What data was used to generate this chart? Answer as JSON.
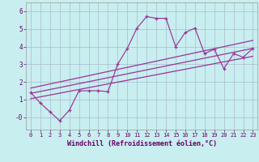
{
  "xlabel": "Windchill (Refroidissement éolien,°C)",
  "bg_color": "#c8eef0",
  "line_color": "#993399",
  "grid_color": "#aabbcc",
  "x_data": [
    0,
    1,
    2,
    3,
    4,
    5,
    6,
    7,
    8,
    9,
    10,
    11,
    12,
    13,
    14,
    15,
    16,
    17,
    18,
    19,
    20,
    21,
    22,
    23
  ],
  "y_scatter": [
    1.4,
    0.8,
    0.3,
    -0.2,
    0.4,
    1.5,
    1.5,
    1.5,
    1.45,
    3.0,
    3.9,
    5.05,
    5.7,
    5.6,
    5.6,
    4.0,
    4.8,
    5.05,
    3.6,
    3.85,
    2.75,
    3.6,
    3.4,
    3.9
  ],
  "reg_line1_x": [
    0,
    23
  ],
  "reg_line1_y": [
    1.35,
    3.9
  ],
  "reg_line2_x": [
    0,
    23
  ],
  "reg_line2_y": [
    1.05,
    3.45
  ],
  "reg_line3_x": [
    0,
    23
  ],
  "reg_line3_y": [
    1.65,
    4.35
  ],
  "xlim": [
    -0.5,
    23.5
  ],
  "ylim": [
    -0.7,
    6.5
  ],
  "ytick_vals": [
    0,
    1,
    2,
    3,
    4,
    5,
    6
  ],
  "ytick_labels": [
    "-0",
    "1",
    "2",
    "3",
    "4",
    "5",
    "6"
  ],
  "xtick_vals": [
    0,
    1,
    2,
    3,
    4,
    5,
    6,
    7,
    8,
    9,
    10,
    11,
    12,
    13,
    14,
    15,
    16,
    17,
    18,
    19,
    20,
    21,
    22,
    23
  ]
}
